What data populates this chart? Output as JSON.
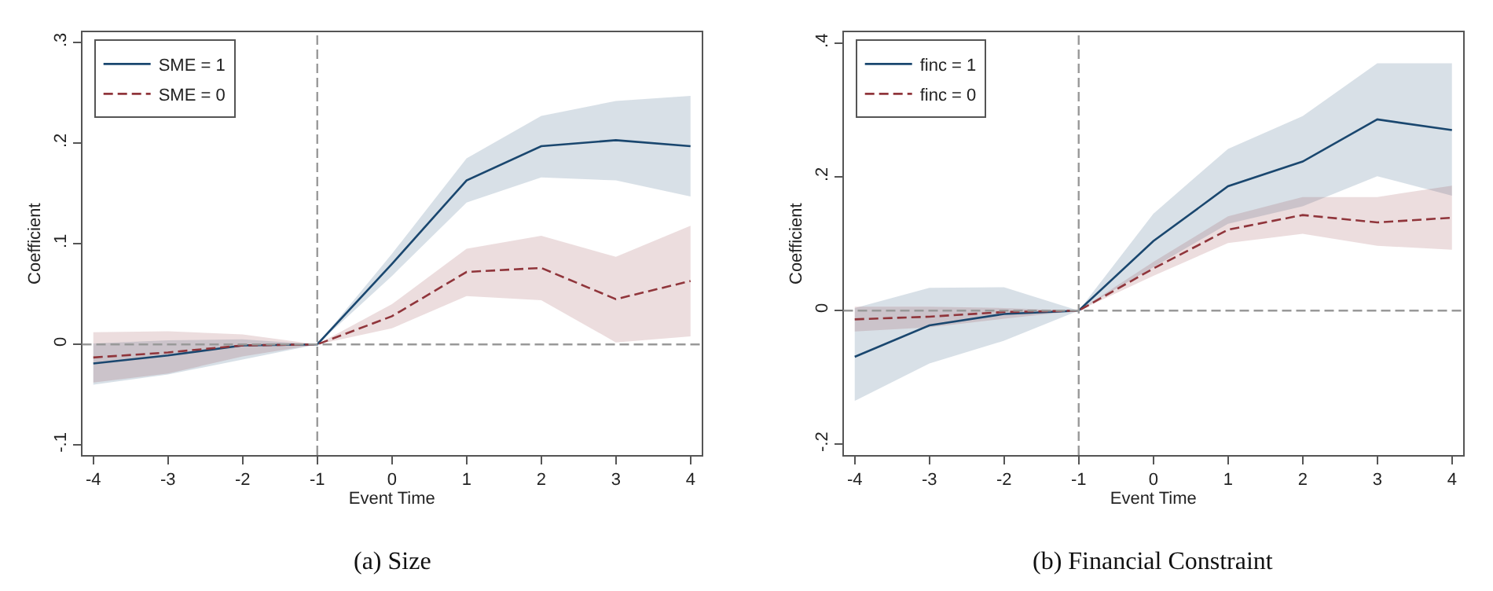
{
  "chart_data": [
    {
      "type": "line",
      "title": "(a) Size",
      "xlabel": "Event Time",
      "ylabel": "Coefficient",
      "x": [
        -4,
        -3,
        -2,
        -1,
        0,
        1,
        2,
        3,
        4
      ],
      "series": [
        {
          "name": "SME = 1",
          "color": "#1a476f",
          "line_style": "solid",
          "values": [
            -0.019,
            -0.011,
            -0.001,
            0,
            0.08,
            0.163,
            0.197,
            0.203,
            0.197
          ],
          "lower": [
            -0.04,
            -0.03,
            -0.015,
            0,
            0.068,
            0.141,
            0.166,
            0.163,
            0.147
          ],
          "upper": [
            0.001,
            0.004,
            0.005,
            0,
            0.09,
            0.185,
            0.227,
            0.242,
            0.247
          ]
        },
        {
          "name": "SME = 0",
          "color": "#90353b",
          "line_style": "dashed",
          "values": [
            -0.013,
            -0.008,
            -0.001,
            0,
            0.028,
            0.072,
            0.076,
            0.045,
            0.063
          ],
          "lower": [
            -0.038,
            -0.029,
            -0.012,
            0,
            0.016,
            0.048,
            0.044,
            0.002,
            0.008
          ],
          "upper": [
            0.012,
            0.013,
            0.01,
            0,
            0.04,
            0.095,
            0.108,
            0.087,
            0.118
          ]
        }
      ],
      "xlim": [
        -4.15,
        4.15
      ],
      "ylim": [
        -0.11,
        0.31
      ],
      "xticks": [
        -4,
        -3,
        -2,
        -1,
        0,
        1,
        2,
        3,
        4
      ],
      "yticks": [
        {
          "value": -0.1,
          "label": "-.1"
        },
        0,
        {
          "value": 0.1,
          "label": ".1"
        },
        {
          "value": 0.2,
          "label": ".2"
        },
        {
          "value": 0.3,
          "label": ".3"
        }
      ],
      "ref_lines": [
        {
          "axis": "x",
          "value": -1,
          "color": "#999999",
          "line_style": "dashed"
        },
        {
          "axis": "y",
          "value": 0,
          "color": "#999999",
          "line_style": "dashed"
        }
      ],
      "legend": "top left",
      "grid": false,
      "marker": "none"
    },
    {
      "type": "line",
      "title": "(b) Financial Constraint",
      "xlabel": "Event Time",
      "ylabel": "Coefficient",
      "x": [
        -4,
        -3,
        -2,
        -1,
        0,
        1,
        2,
        3,
        4
      ],
      "series": [
        {
          "name": "finc = 1",
          "color": "#1a476f",
          "line_style": "solid",
          "values": [
            -0.069,
            -0.022,
            -0.005,
            0,
            0.104,
            0.186,
            0.223,
            0.286,
            0.27
          ],
          "lower": [
            -0.135,
            -0.079,
            -0.045,
            0,
            0.065,
            0.13,
            0.156,
            0.201,
            0.172
          ],
          "upper": [
            0.004,
            0.034,
            0.035,
            0,
            0.145,
            0.242,
            0.291,
            0.37,
            0.37
          ]
        },
        {
          "name": "finc = 0",
          "color": "#90353b",
          "line_style": "dashed",
          "values": [
            -0.013,
            -0.009,
            -0.002,
            0,
            0.063,
            0.121,
            0.143,
            0.132,
            0.139
          ],
          "lower": [
            -0.031,
            -0.025,
            -0.012,
            0,
            0.052,
            0.101,
            0.115,
            0.097,
            0.091
          ],
          "upper": [
            0.006,
            0.006,
            0.004,
            0,
            0.073,
            0.141,
            0.17,
            0.17,
            0.187
          ]
        }
      ],
      "xlim": [
        -4.15,
        4.15
      ],
      "ylim": [
        -0.216,
        0.416
      ],
      "xticks": [
        -4,
        -3,
        -2,
        -1,
        0,
        1,
        2,
        3,
        4
      ],
      "yticks": [
        {
          "value": -0.2,
          "label": "-.2"
        },
        0,
        {
          "value": 0.2,
          "label": ".2"
        },
        {
          "value": 0.4,
          "label": ".4"
        }
      ],
      "ref_lines": [
        {
          "axis": "x",
          "value": -1,
          "color": "#999999",
          "line_style": "dashed"
        },
        {
          "axis": "y",
          "value": 0,
          "color": "#999999",
          "line_style": "dashed"
        }
      ],
      "legend": "top left",
      "grid": false,
      "marker": "none"
    }
  ]
}
